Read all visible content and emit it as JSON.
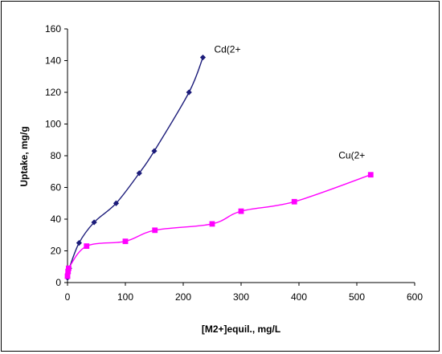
{
  "chart_data": {
    "type": "line",
    "title": "",
    "xlabel": "[M2+]equil., mg/L",
    "ylabel": "Uptake, mg/g",
    "xlim": [
      0,
      600
    ],
    "ylim": [
      0,
      160
    ],
    "xticks": [
      0,
      100,
      200,
      300,
      400,
      500,
      600
    ],
    "yticks": [
      0,
      20,
      40,
      60,
      80,
      100,
      120,
      140,
      160
    ],
    "grid": false,
    "legend": "none",
    "series": [
      {
        "name": "Cd(2+",
        "color": "#1c1c7a",
        "marker": "diamond",
        "x": [
          0,
          1,
          3,
          20,
          46,
          84,
          124,
          150,
          210,
          234
        ],
        "y": [
          3,
          6,
          9,
          25,
          38,
          50,
          69,
          83,
          120,
          142
        ]
      },
      {
        "name": "Cu(2+",
        "color": "#ff00ff",
        "marker": "square",
        "x": [
          0,
          1,
          2,
          33,
          100,
          151,
          250,
          300,
          392,
          524
        ],
        "y": [
          4,
          7,
          9,
          23,
          26,
          33,
          37,
          45,
          51,
          68
        ]
      }
    ]
  }
}
